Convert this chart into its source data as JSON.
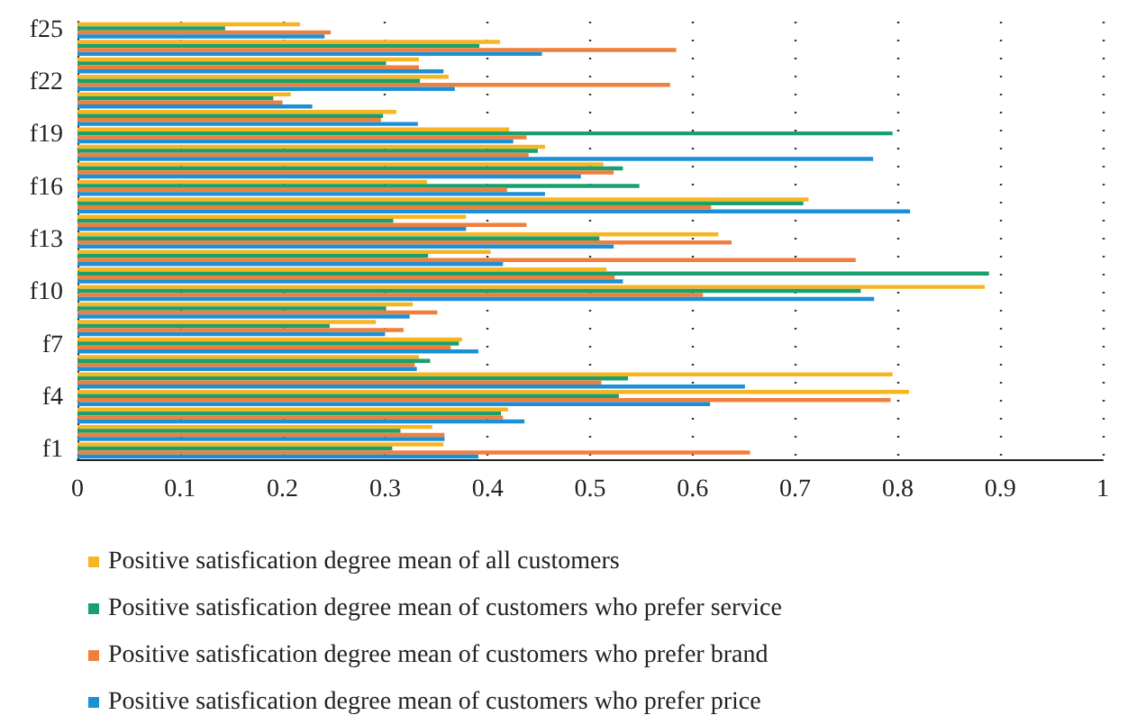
{
  "chart_data": {
    "type": "bar",
    "orientation": "horizontal",
    "categories": [
      "f25",
      null,
      null,
      "f22",
      null,
      null,
      "f19",
      null,
      null,
      "f16",
      null,
      null,
      "f13",
      null,
      null,
      "f10",
      null,
      null,
      "f7",
      null,
      null,
      "f4",
      null,
      null,
      "f1"
    ],
    "series": [
      {
        "name": "Positive satisfication degree mean of all customers",
        "color": "#f7b521",
        "values": [
          0.217,
          0.412,
          0.333,
          0.362,
          0.208,
          0.311,
          0.421,
          0.456,
          0.513,
          0.341,
          0.713,
          0.379,
          0.625,
          0.403,
          0.516,
          0.885,
          0.327,
          0.291,
          0.375,
          0.333,
          0.795,
          0.811,
          0.42,
          0.346,
          0.357
        ]
      },
      {
        "name": "Positive satisfication degree mean of customers who prefer service",
        "color": "#1aa06d",
        "values": [
          0.144,
          0.392,
          0.301,
          0.334,
          0.191,
          0.298,
          0.795,
          0.449,
          0.532,
          0.548,
          0.708,
          0.308,
          0.509,
          0.342,
          0.889,
          0.764,
          0.301,
          0.246,
          0.372,
          0.344,
          0.537,
          0.528,
          0.413,
          0.315,
          0.307
        ]
      },
      {
        "name": "Positive satisfication degree mean of customers who prefer brand",
        "color": "#f07f3c",
        "values": [
          0.247,
          0.584,
          0.333,
          0.578,
          0.2,
          0.296,
          0.438,
          0.44,
          0.523,
          0.419,
          0.618,
          0.438,
          0.638,
          0.759,
          0.524,
          0.61,
          0.351,
          0.318,
          0.364,
          0.329,
          0.511,
          0.793,
          0.415,
          0.358,
          0.656
        ]
      },
      {
        "name": "Positive satisfication degree mean of customers who prefer price",
        "color": "#1b90d6",
        "values": [
          0.241,
          0.453,
          0.357,
          0.368,
          0.229,
          0.332,
          0.425,
          0.776,
          0.491,
          0.456,
          0.812,
          0.379,
          0.523,
          0.415,
          0.532,
          0.777,
          0.324,
          0.3,
          0.391,
          0.331,
          0.651,
          0.617,
          0.436,
          0.358,
          0.391
        ]
      }
    ],
    "xlim": [
      0,
      1
    ],
    "xticks": [
      0,
      0.1,
      0.2,
      0.3,
      0.4,
      0.5,
      0.6,
      0.7,
      0.8,
      0.9,
      1
    ],
    "grid": "x",
    "legend": "bottom"
  }
}
